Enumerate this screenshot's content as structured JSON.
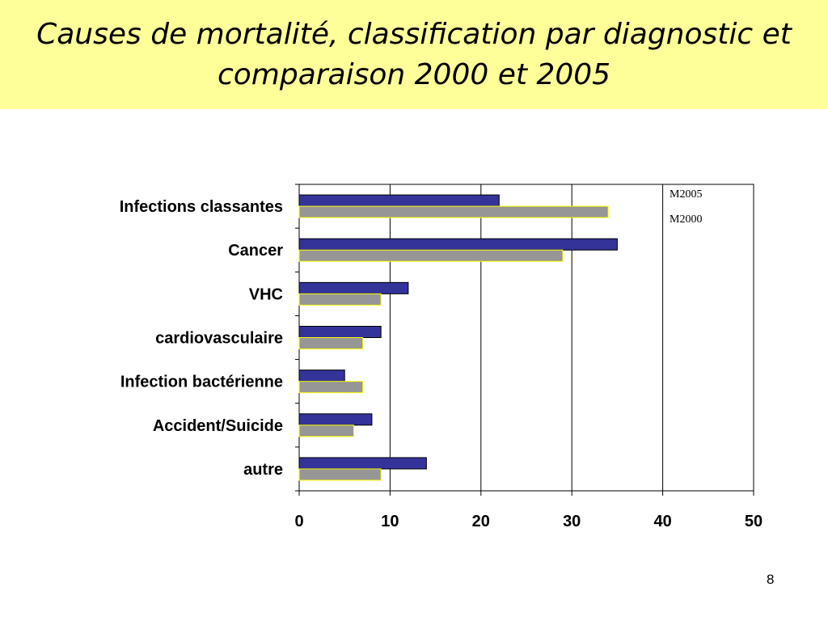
{
  "slide": {
    "title": "Causes de mortalité, classification par diagnostic et comparaison 2000 et 2005",
    "page_number": "8"
  },
  "chart_data": {
    "type": "bar",
    "orientation": "horizontal",
    "title": "",
    "xlabel": "",
    "ylabel": "",
    "categories": [
      "Infections classantes",
      "Cancer",
      "VHC",
      "cardiovasculaire",
      "Infection bactérienne",
      "Accident/Suicide",
      "autre"
    ],
    "series": [
      {
        "name": "M2005",
        "values": [
          22,
          35,
          12,
          9,
          5,
          8,
          14
        ],
        "color": "#333399",
        "edge": "#000000"
      },
      {
        "name": "M2000",
        "values": [
          34,
          29,
          9,
          7,
          7,
          6,
          9
        ],
        "color": "#969696",
        "edge": "#ffff00"
      }
    ],
    "xlim": [
      0,
      50
    ],
    "xticks": [
      0,
      10,
      20,
      30,
      40,
      50
    ],
    "grid": "vertical",
    "legend": "top-right"
  }
}
